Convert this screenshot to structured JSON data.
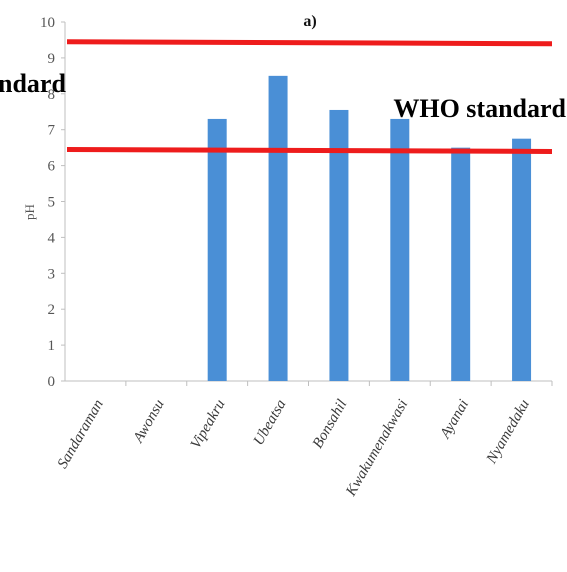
{
  "chart_data": {
    "type": "bar",
    "title": "a)",
    "xlabel": "",
    "ylabel": "pH",
    "ylim": [
      0,
      10
    ],
    "yticks": [
      "0",
      "1",
      "2",
      "3",
      "4",
      "5",
      "6",
      "7",
      "8",
      "9",
      "10"
    ],
    "categories": [
      "Sandaraman",
      "Awonsu",
      "Vipeakru",
      "Ubeatsa",
      "Bonsahil",
      "Kwakumenakwasi",
      "Ayanai",
      "Nyamedaku"
    ],
    "values": [
      null,
      null,
      7.3,
      8.5,
      7.55,
      7.3,
      6.5,
      6.75
    ],
    "bar_color": "#4a8fd6",
    "reference_lines": [
      {
        "label": "ndard",
        "value": 9.45,
        "color": "#ee1c1c"
      },
      {
        "label": "WHO standard",
        "value": 6.45,
        "color": "#ee1c1c"
      }
    ],
    "grid": false,
    "legend": "none"
  }
}
